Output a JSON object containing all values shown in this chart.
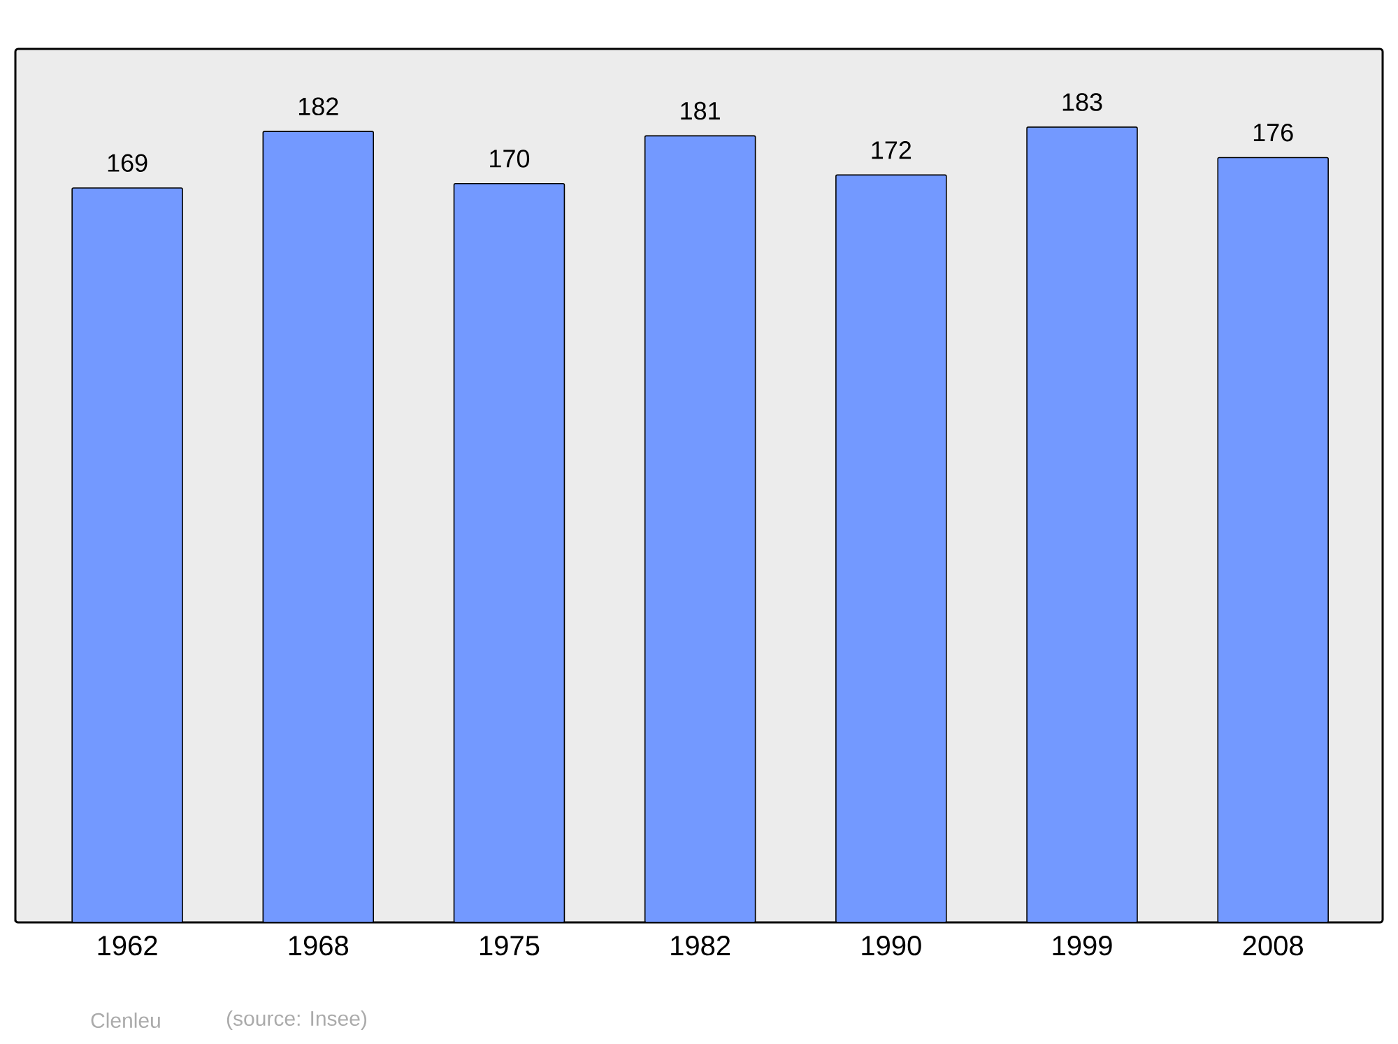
{
  "chart_data": {
    "type": "bar",
    "categories": [
      "1962",
      "1968",
      "1975",
      "1982",
      "1990",
      "1999",
      "2008"
    ],
    "values": [
      169,
      182,
      170,
      181,
      172,
      183,
      176
    ],
    "color": "#7399ff",
    "ylim": [
      0,
      201
    ],
    "data_labels": true,
    "annotations": [
      "Clenleu",
      "(source: Insee)"
    ]
  }
}
